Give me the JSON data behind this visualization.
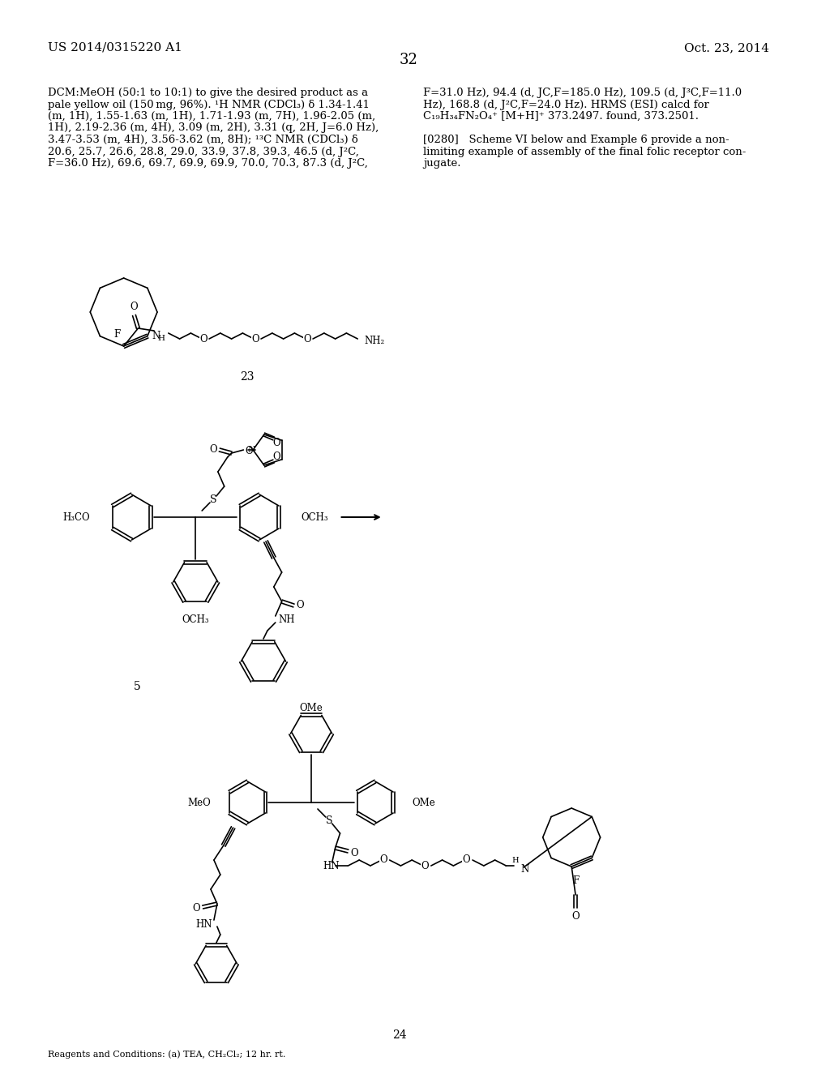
{
  "page_number": "32",
  "patent_number": "US 2014/0315220 A1",
  "patent_date": "Oct. 23, 2014",
  "bg_color": "#ffffff",
  "text_color": "#000000",
  "compound_23_label": "23",
  "compound_5_label": "5",
  "compound_24_label": "24",
  "reagents_text": "Reagents and Conditions: (a) TEA, CH₂Cl₂; 12 hr. rt.",
  "font_size_body": 9.5,
  "font_size_label": 10,
  "font_size_header": 11
}
